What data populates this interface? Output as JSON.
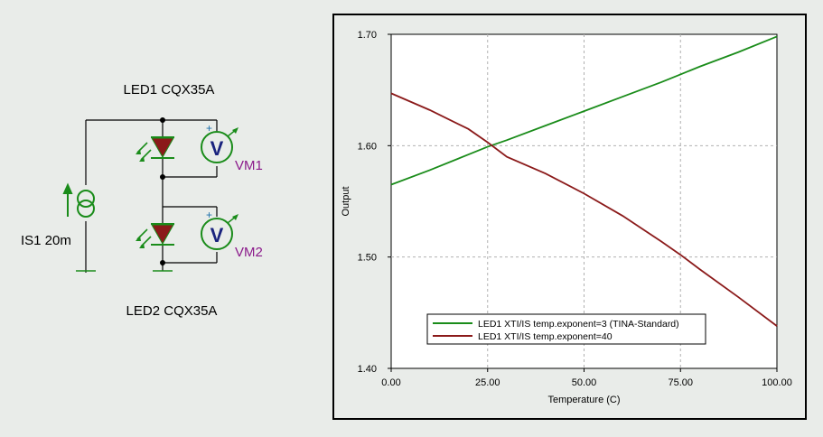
{
  "schematic": {
    "led1_label": "LED1 CQX35A",
    "led2_label": "LED2 CQX35A",
    "source_label": "IS1 20m",
    "vm1_label": "VM1",
    "vm2_label": "VM2",
    "voltmeter_symbol": "V",
    "plus_sign": "+",
    "wire_color": "#000000",
    "component_color": "#1a8c1a",
    "led_fill_color": "#8b1a1a",
    "meter_label_color": "#8b1a8b"
  },
  "chart_data": {
    "type": "line",
    "xlabel": "Temperature (C)",
    "ylabel": "Output",
    "xlim": [
      0,
      100
    ],
    "ylim": [
      1.4,
      1.7
    ],
    "x_ticks": [
      "0.00",
      "25.00",
      "50.00",
      "75.00",
      "100.00"
    ],
    "y_ticks": [
      "1.40",
      "1.50",
      "1.60",
      "1.70"
    ],
    "grid": true,
    "legend_position": "bottom-center",
    "series": [
      {
        "name": "LED1  XTI/IS temp.exponent=3 (TINA-Standard)",
        "color": "#1a8c1a",
        "x": [
          0,
          10,
          20,
          25,
          30,
          40,
          50,
          60,
          70,
          75,
          80,
          90,
          100
        ],
        "y": [
          1.565,
          1.578,
          1.592,
          1.599,
          1.605,
          1.618,
          1.631,
          1.644,
          1.657,
          1.664,
          1.671,
          1.684,
          1.698
        ]
      },
      {
        "name": "LED1  XTI/IS temp.exponent=40",
        "color": "#8b1a1a",
        "x": [
          0,
          10,
          20,
          25,
          30,
          40,
          50,
          60,
          70,
          75,
          80,
          90,
          100
        ],
        "y": [
          1.647,
          1.632,
          1.615,
          1.603,
          1.59,
          1.575,
          1.557,
          1.537,
          1.514,
          1.502,
          1.489,
          1.464,
          1.438
        ]
      }
    ]
  }
}
